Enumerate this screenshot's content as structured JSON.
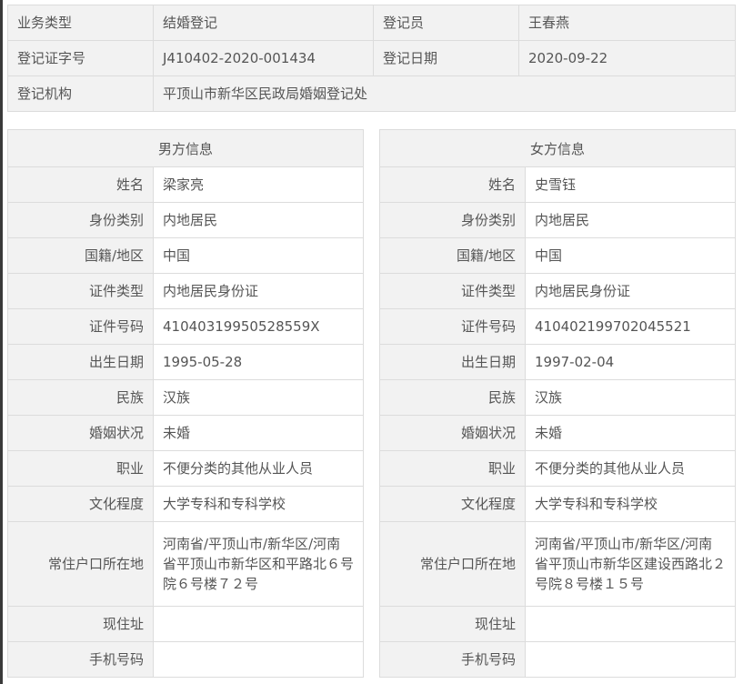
{
  "registration": {
    "business_type_label": "业务类型",
    "business_type": "结婚登记",
    "registrar_label": "登记员",
    "registrar": "王春燕",
    "cert_no_label": "登记证字号",
    "cert_no": "J410402-2020-001434",
    "date_label": "登记日期",
    "date": "2020-09-22",
    "agency_label": "登记机构",
    "agency": "平顶山市新华区民政局婚姻登记处"
  },
  "male": {
    "title": "男方信息",
    "rows": [
      {
        "label": "姓名",
        "value": "梁家亮"
      },
      {
        "label": "身份类别",
        "value": "内地居民"
      },
      {
        "label": "国籍/地区",
        "value": "中国"
      },
      {
        "label": "证件类型",
        "value": "内地居民身份证"
      },
      {
        "label": "证件号码",
        "value": "41040319950528559X"
      },
      {
        "label": "出生日期",
        "value": "1995-05-28"
      },
      {
        "label": "民族",
        "value": "汉族"
      },
      {
        "label": "婚姻状况",
        "value": "未婚"
      },
      {
        "label": "职业",
        "value": "不便分类的其他从业人员"
      },
      {
        "label": "文化程度",
        "value": "大学专科和专科学校"
      },
      {
        "label": "常住户口所在地",
        "value": "河南省/平顶山市/新华区/河南省平顶山市新华区和平路北６号院６号楼７２号"
      },
      {
        "label": "现住址",
        "value": ""
      },
      {
        "label": "手机号码",
        "value": ""
      }
    ]
  },
  "female": {
    "title": "女方信息",
    "rows": [
      {
        "label": "姓名",
        "value": "史雪钰"
      },
      {
        "label": "身份类别",
        "value": "内地居民"
      },
      {
        "label": "国籍/地区",
        "value": "中国"
      },
      {
        "label": "证件类型",
        "value": "内地居民身份证"
      },
      {
        "label": "证件号码",
        "value": "410402199702045521"
      },
      {
        "label": "出生日期",
        "value": "1997-02-04"
      },
      {
        "label": "民族",
        "value": "汉族"
      },
      {
        "label": "婚姻状况",
        "value": "未婚"
      },
      {
        "label": "职业",
        "value": "不便分类的其他从业人员"
      },
      {
        "label": "文化程度",
        "value": "大学专科和专科学校"
      },
      {
        "label": "常住户口所在地",
        "value": "河南省/平顶山市/新华区/河南省平顶山市新华区建设西路北２号院８号楼１５号"
      },
      {
        "label": "现住址",
        "value": ""
      },
      {
        "label": "手机号码",
        "value": ""
      }
    ]
  }
}
